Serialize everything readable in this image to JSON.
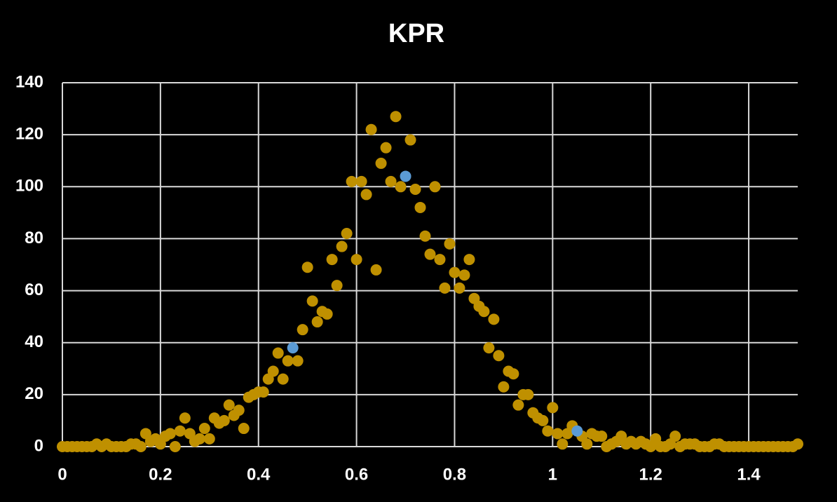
{
  "chart_data": {
    "type": "scatter",
    "title": "KPR",
    "xlim": [
      0,
      1.5
    ],
    "xticks": [
      0,
      0.2,
      0.4,
      0.6,
      0.8,
      1,
      1.2,
      1.4
    ],
    "ylim": [
      0,
      140
    ],
    "yticks": [
      0,
      20,
      40,
      60,
      80,
      100,
      120,
      140
    ],
    "grid": true,
    "series": [
      {
        "color": "#bf9000",
        "x": [
          0,
          0.01,
          0.02,
          0.03,
          0.04,
          0.05,
          0.06,
          0.07,
          0.08,
          0.09,
          0.1,
          0.11,
          0.12,
          0.13,
          0.14,
          0.15,
          0.16,
          0.17,
          0.18,
          0.19,
          0.2,
          0.21,
          0.22,
          0.23,
          0.24,
          0.25,
          0.26,
          0.27,
          0.28,
          0.29,
          0.3,
          0.31,
          0.32,
          0.33,
          0.34,
          0.35,
          0.36,
          0.37,
          0.38,
          0.39,
          0.4,
          0.41,
          0.42,
          0.43,
          0.44,
          0.45,
          0.46,
          0.48,
          0.49,
          0.5,
          0.51,
          0.52,
          0.53,
          0.54,
          0.55,
          0.56,
          0.57,
          0.58,
          0.59,
          0.6,
          0.61,
          0.62,
          0.63,
          0.64,
          0.65,
          0.66,
          0.67,
          0.68,
          0.69,
          0.71,
          0.72,
          0.73,
          0.74,
          0.75,
          0.76,
          0.77,
          0.78,
          0.79,
          0.8,
          0.81,
          0.82,
          0.83,
          0.84,
          0.85,
          0.86,
          0.87,
          0.88,
          0.89,
          0.9,
          0.91,
          0.92,
          0.93,
          0.94,
          0.95,
          0.96,
          0.97,
          0.98,
          0.99,
          1,
          1.01,
          1.02,
          1.03,
          1.04,
          1.06,
          1.07,
          1.08,
          1.09,
          1.1,
          1.11,
          1.12,
          1.13,
          1.14,
          1.15,
          1.16,
          1.17,
          1.18,
          1.19,
          1.2,
          1.21,
          1.22,
          1.23,
          1.24,
          1.25,
          1.26,
          1.27,
          1.28,
          1.29,
          1.3,
          1.31,
          1.32,
          1.33,
          1.34,
          1.35,
          1.36,
          1.37,
          1.38,
          1.39,
          1.4,
          1.41,
          1.42,
          1.43,
          1.44,
          1.45,
          1.46,
          1.47,
          1.48,
          1.49,
          1.5
        ],
        "values": [
          0,
          0,
          0,
          0,
          0,
          0,
          0,
          1,
          0,
          1,
          0,
          0,
          0,
          0,
          1,
          1,
          0,
          5,
          2,
          3,
          1,
          4,
          5,
          0,
          6,
          11,
          5,
          2,
          3,
          7,
          3,
          11,
          9,
          10,
          16,
          12,
          14,
          7,
          19,
          20,
          21,
          21,
          26,
          29,
          36,
          26,
          33,
          33,
          45,
          69,
          56,
          48,
          52,
          51,
          72,
          62,
          77,
          82,
          102,
          72,
          102,
          97,
          122,
          68,
          109,
          115,
          102,
          127,
          100,
          118,
          99,
          92,
          81,
          74,
          100,
          72,
          61,
          78,
          67,
          61,
          66,
          72,
          57,
          54,
          52,
          38,
          49,
          35,
          23,
          29,
          28,
          16,
          20,
          20,
          13,
          11,
          10,
          6,
          15,
          5,
          1,
          5,
          8,
          4,
          1,
          5,
          4,
          4,
          0,
          1,
          2,
          4,
          1,
          2,
          1,
          2,
          1,
          0,
          3,
          0,
          0,
          1,
          4,
          0,
          1,
          1,
          1,
          0,
          0,
          0,
          1,
          1,
          0,
          0,
          0,
          0,
          0,
          0,
          0,
          0,
          0,
          0,
          0,
          0,
          0,
          0,
          0,
          1
        ]
      },
      {
        "color": "#5b9bd5",
        "x": [
          0.47,
          0.7,
          1.05
        ],
        "values": [
          38,
          104,
          6
        ]
      }
    ]
  }
}
